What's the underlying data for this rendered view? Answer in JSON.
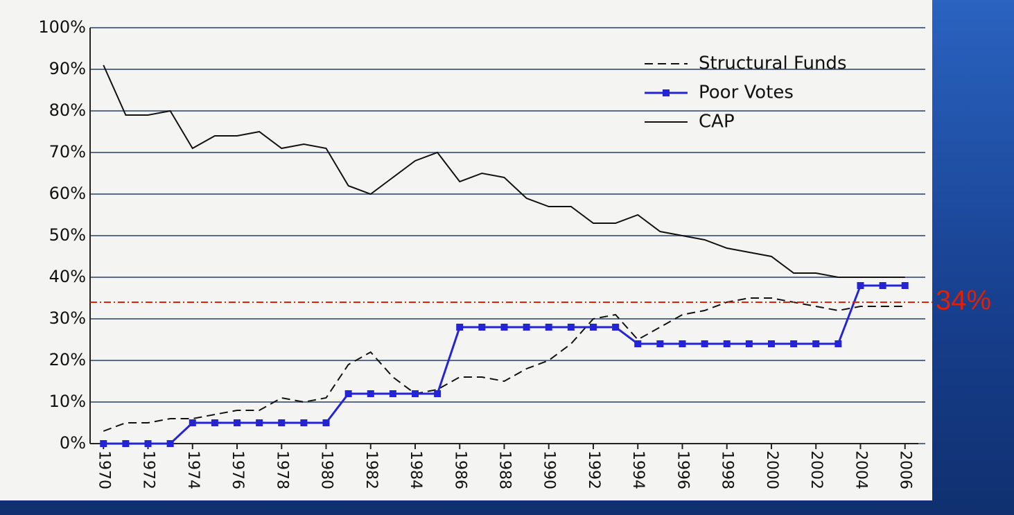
{
  "chart_data": {
    "type": "line",
    "x": [
      1970,
      1971,
      1972,
      1973,
      1974,
      1975,
      1976,
      1977,
      1978,
      1979,
      1980,
      1981,
      1982,
      1983,
      1984,
      1985,
      1986,
      1987,
      1988,
      1989,
      1990,
      1991,
      1992,
      1993,
      1994,
      1995,
      1996,
      1997,
      1998,
      1999,
      2000,
      2001,
      2002,
      2003,
      2004,
      2005,
      2006
    ],
    "xlim": [
      1969.4,
      2006.6
    ],
    "xticks": [
      1970,
      1972,
      1974,
      1976,
      1978,
      1980,
      1982,
      1984,
      1986,
      1988,
      1990,
      1992,
      1994,
      1996,
      1998,
      2000,
      2002,
      2004,
      2006
    ],
    "ylim": [
      0,
      100
    ],
    "yticks": [
      {
        "value": 0,
        "label": "0%"
      },
      {
        "value": 10,
        "label": "10%"
      },
      {
        "value": 20,
        "label": "20%"
      },
      {
        "value": 30,
        "label": "30%"
      },
      {
        "value": 40,
        "label": "40%"
      },
      {
        "value": 50,
        "label": "50%"
      },
      {
        "value": 60,
        "label": "60%"
      },
      {
        "value": 70,
        "label": "70%"
      },
      {
        "value": 80,
        "label": "80%"
      },
      {
        "value": 90,
        "label": "90%"
      },
      {
        "value": 100,
        "label": "100%"
      }
    ],
    "grid": true,
    "legend": "top-right",
    "series": [
      {
        "name": "Structural Funds",
        "color": "#111111",
        "line_style": "dashed",
        "values": [
          3,
          5,
          5,
          6,
          6,
          7,
          8,
          8,
          11,
          10,
          11,
          19,
          22,
          16,
          12,
          13,
          16,
          16,
          15,
          18,
          20,
          24,
          30,
          31,
          25,
          28,
          31,
          32,
          34,
          35,
          35,
          34,
          33,
          32,
          33,
          33,
          33
        ]
      },
      {
        "name": "Poor Votes",
        "color": "#2424d6",
        "line_style": "solid",
        "marker": "square",
        "values": [
          0,
          0,
          0,
          0,
          5,
          5,
          5,
          5,
          5,
          5,
          5,
          12,
          12,
          12,
          12,
          12,
          28,
          28,
          28,
          28,
          28,
          28,
          28,
          28,
          24,
          24,
          24,
          24,
          24,
          24,
          24,
          24,
          24,
          24,
          38,
          38,
          38
        ]
      },
      {
        "name": "CAP",
        "color": "#111111",
        "line_style": "solid",
        "values": [
          91,
          79,
          79,
          80,
          71,
          74,
          74,
          75,
          71,
          72,
          71,
          62,
          60,
          64,
          68,
          70,
          63,
          65,
          64,
          59,
          57,
          57,
          53,
          53,
          55,
          51,
          50,
          49,
          47,
          46,
          45,
          41,
          41,
          40,
          40,
          40,
          40
        ]
      }
    ],
    "annotation": {
      "value": 34,
      "label": "34%",
      "color": "#e02000"
    }
  }
}
